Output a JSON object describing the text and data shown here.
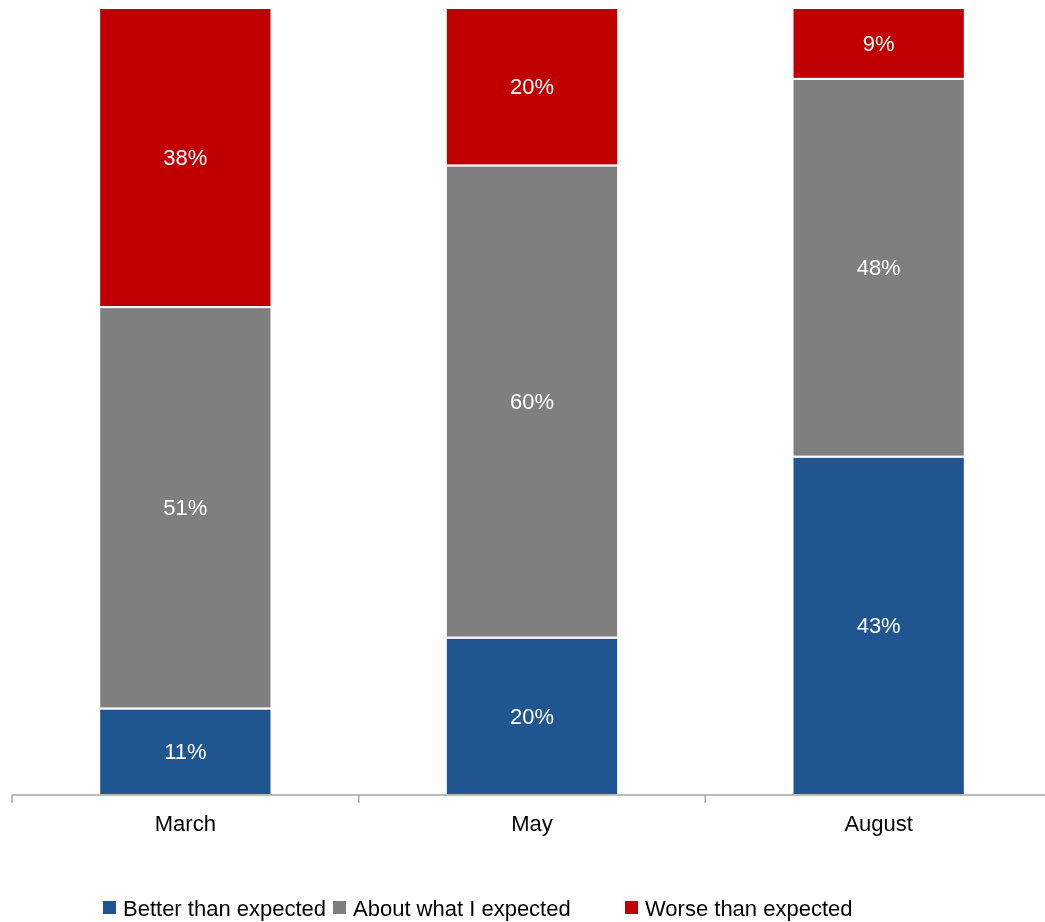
{
  "chart_data": {
    "type": "bar",
    "stacked": true,
    "categories": [
      "March",
      "May",
      "August"
    ],
    "legend": "bottom",
    "tick_labels": "x",
    "series": [
      {
        "name": "Better than expected",
        "color": "#1f5591",
        "values": [
          11,
          20,
          43
        ],
        "value_labels": [
          "11%",
          "20%",
          "43%"
        ]
      },
      {
        "name": "About what I expected",
        "color": "#7f7f7f",
        "values": [
          51,
          60,
          48
        ],
        "value_labels": [
          "51%",
          "60%",
          "48%"
        ]
      },
      {
        "name": "Worse than expected",
        "color": "#c00000",
        "values": [
          38,
          20,
          9
        ],
        "value_labels": [
          "38%",
          "20%",
          "9%"
        ]
      }
    ]
  }
}
